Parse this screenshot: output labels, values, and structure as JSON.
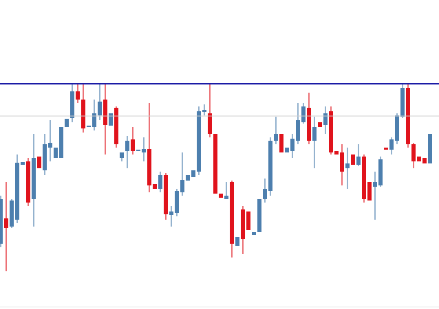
{
  "chart_data": {
    "type": "candlestick",
    "open": [
      95,
      132,
      120,
      130,
      210,
      215,
      160,
      222,
      202,
      235,
      220,
      220,
      265,
      278,
      317,
      305,
      265,
      265,
      282,
      305,
      267,
      293,
      220,
      230,
      247,
      230,
      228,
      233,
      182,
      175,
      195,
      137,
      140,
      170,
      187,
      192,
      200,
      287,
      285,
      255,
      168,
      160,
      185,
      92,
      145,
      142,
      108,
      112,
      160,
      172,
      245,
      255,
      228,
      230,
      245,
      272,
      293,
      245,
      272,
      268,
      288,
      230,
      228,
      205,
      225,
      210,
      222,
      185,
      178,
      180,
      235,
      232,
      245,
      280,
      322,
      240,
      222,
      220,
      212
    ],
    "high": [
      165,
      185,
      160,
      225,
      214,
      220,
      255,
      222,
      255,
      275,
      235,
      265,
      277,
      328,
      328,
      328,
      267,
      305,
      328,
      328,
      285,
      295,
      228,
      252,
      265,
      232,
      250,
      300,
      182,
      200,
      198,
      150,
      175,
      228,
      195,
      202,
      295,
      298,
      328,
      255,
      168,
      185,
      187,
      105,
      150,
      142,
      112,
      160,
      190,
      250,
      280,
      255,
      235,
      255,
      300,
      300,
      315,
      280,
      272,
      295,
      295,
      230,
      240,
      235,
      225,
      240,
      225,
      185,
      200,
      222,
      235,
      250,
      285,
      328,
      328,
      242,
      222,
      220,
      255
    ],
    "low": [
      90,
      55,
      118,
      125,
      210,
      150,
      120,
      205,
      195,
      215,
      220,
      220,
      265,
      272,
      300,
      257,
      265,
      260,
      275,
      225,
      267,
      235,
      215,
      205,
      225,
      230,
      215,
      170,
      175,
      170,
      130,
      120,
      135,
      165,
      187,
      192,
      195,
      282,
      250,
      168,
      162,
      160,
      75,
      92,
      80,
      115,
      108,
      112,
      155,
      165,
      240,
      228,
      228,
      220,
      240,
      270,
      240,
      205,
      265,
      255,
      225,
      225,
      180,
      175,
      210,
      208,
      155,
      158,
      130,
      178,
      232,
      225,
      240,
      278,
      235,
      205,
      215,
      212,
      212
    ],
    "close": [
      160,
      118,
      158,
      213,
      214,
      155,
      220,
      205,
      240,
      242,
      235,
      265,
      277,
      317,
      305,
      263,
      267,
      285,
      302,
      268,
      285,
      240,
      228,
      245,
      230,
      232,
      233,
      180,
      175,
      195,
      138,
      142,
      172,
      188,
      195,
      202,
      288,
      290,
      255,
      168,
      162,
      165,
      95,
      105,
      102,
      115,
      112,
      160,
      175,
      245,
      255,
      228,
      235,
      248,
      275,
      295,
      245,
      265,
      265,
      285,
      228,
      225,
      200,
      212,
      210,
      222,
      160,
      158,
      185,
      218,
      232,
      247,
      282,
      322,
      240,
      215,
      215,
      212,
      255
    ],
    "up_color": "#4d7fae",
    "down_color": "#e0131c",
    "ylim": [
      0,
      450
    ],
    "levels": [
      {
        "value": 328,
        "color": "#1b1ba6"
      },
      {
        "value": 281,
        "color": "#cfcfcf"
      }
    ]
  }
}
